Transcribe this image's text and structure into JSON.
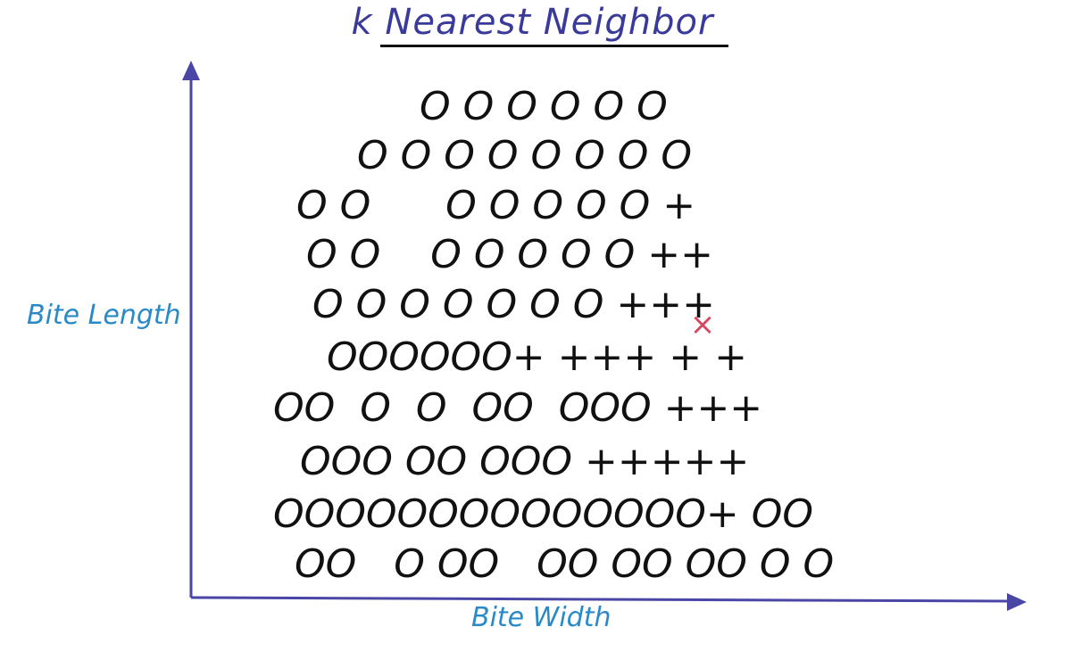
{
  "title": "k Nearest Neighbor",
  "x_axis_label": "Bite Width",
  "y_axis_label": "Bite Length",
  "colors": {
    "title": "#3a3a9a",
    "axis": "#4a46a6",
    "axis_label": "#2a8ac8",
    "symbols": "#111111",
    "query_point": "#d9455f"
  },
  "rows": [
    "O O O O O O",
    "O O O O O O O O",
    "O O      O O O O O +",
    "O O    O O O O O ++",
    "O O O O O O O +++",
    "OOOOOO+ +++ + +",
    "OO  O  O  OO  OOO +++",
    "OOO OO OOO +++++",
    "OOOOOOOOOOOOOO+ OO",
    "OO   O OO   OO OO OO O O"
  ],
  "query_point_symbol": "×"
}
